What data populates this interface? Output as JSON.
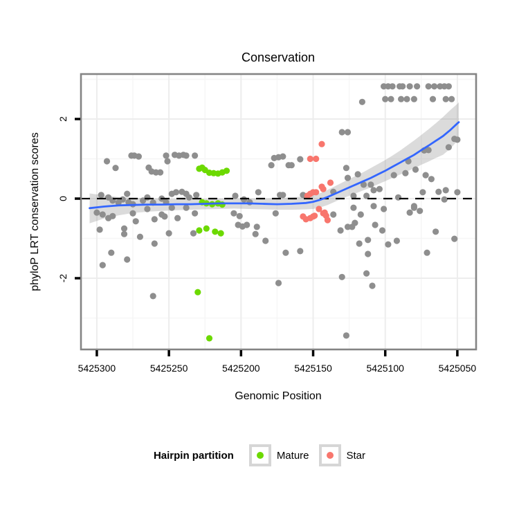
{
  "chart_data": {
    "type": "scatter",
    "title": "Conservation",
    "xlabel": "Genomic Position",
    "ylabel": "phyloP LRT conservation scores",
    "x_reversed": true,
    "xlim": [
      5425311,
      5425037
    ],
    "ylim": [
      -3.79,
      3.13
    ],
    "x_ticks": [
      5425300,
      5425250,
      5425200,
      5425150,
      5425100,
      5425050
    ],
    "x_minor_ticks": [
      5425275,
      5425225,
      5425175,
      5425125,
      5425075
    ],
    "y_ticks": [
      2,
      0,
      -2
    ],
    "y_minor_ticks": [
      3,
      1,
      -1,
      -3
    ],
    "reference_line_y": 0,
    "grid": true,
    "colors": {
      "other_points": "#8e8e8e",
      "mature_points": "#6cd900",
      "star_points": "#f8766d",
      "smooth_line": "#3366ff",
      "confidence_band": "rgba(125,125,125,0.28)",
      "panel_border": "#848484",
      "reference_line": "#000000",
      "grid_major": "#ededed",
      "grid_minor": "#f6f6f6"
    },
    "legend": {
      "title": "Hairpin partition",
      "position": "bottom",
      "entries": [
        {
          "label": "Mature",
          "color": "#6cd900"
        },
        {
          "label": "Star",
          "color": "#f8766d"
        }
      ]
    },
    "series": [
      {
        "name": "other",
        "color": "#8e8e8e",
        "points": [
          [
            5425101,
            2.82
          ],
          [
            5425098,
            2.82
          ],
          [
            5425095,
            2.82
          ],
          [
            5425090,
            2.82
          ],
          [
            5425088,
            2.82
          ],
          [
            5425083,
            2.82
          ],
          [
            5425078,
            2.82
          ],
          [
            5425070,
            2.82
          ],
          [
            5425066,
            2.82
          ],
          [
            5425062,
            2.82
          ],
          [
            5425059,
            2.82
          ],
          [
            5425056,
            2.82
          ],
          [
            5425100,
            2.5
          ],
          [
            5425096,
            2.5
          ],
          [
            5425089,
            2.5
          ],
          [
            5425085,
            2.5
          ],
          [
            5425080,
            2.5
          ],
          [
            5425067,
            2.5
          ],
          [
            5425058,
            2.5
          ],
          [
            5425054,
            2.5
          ],
          [
            5425116,
            2.43
          ],
          [
            5425130,
            1.67
          ],
          [
            5425126,
            1.67
          ],
          [
            5425293,
            0.94
          ],
          [
            5425287,
            0.77
          ],
          [
            5425276,
            1.08
          ],
          [
            5425274,
            1.08
          ],
          [
            5425271,
            1.06
          ],
          [
            5425264,
            0.78
          ],
          [
            5425262,
            0.68
          ],
          [
            5425259,
            0.66
          ],
          [
            5425256,
            0.66
          ],
          [
            5425252,
            1.08
          ],
          [
            5425251,
            0.94
          ],
          [
            5425246,
            1.1
          ],
          [
            5425243,
            1.08
          ],
          [
            5425240,
            1.1
          ],
          [
            5425238,
            1.08
          ],
          [
            5425232,
            1.08
          ],
          [
            5425179,
            0.84
          ],
          [
            5425177,
            1.02
          ],
          [
            5425174,
            1.04
          ],
          [
            5425171,
            1.06
          ],
          [
            5425167,
            0.84
          ],
          [
            5425165,
            0.84
          ],
          [
            5425159,
            0.99
          ],
          [
            5425127,
            0.77
          ],
          [
            5425126,
            0.52
          ],
          [
            5425119,
            0.61
          ],
          [
            5425115,
            0.35
          ],
          [
            5425110,
            0.35
          ],
          [
            5425094,
            0.59
          ],
          [
            5425086,
            0.64
          ],
          [
            5425084,
            0.94
          ],
          [
            5425079,
            0.73
          ],
          [
            5425073,
            1.21
          ],
          [
            5425070,
            1.22
          ],
          [
            5425072,
            0.59
          ],
          [
            5425068,
            0.49
          ],
          [
            5425056,
            1.29
          ],
          [
            5425052,
            1.5
          ],
          [
            5425050,
            1.48
          ],
          [
            5425297,
            0.09
          ],
          [
            5425292,
            0.03
          ],
          [
            5425289,
            -0.05
          ],
          [
            5425285,
            -0.1
          ],
          [
            5425282,
            -0.02
          ],
          [
            5425279,
            0.12
          ],
          [
            5425278,
            -0.09
          ],
          [
            5425275,
            -0.14
          ],
          [
            5425268,
            -0.05
          ],
          [
            5425265,
            0.03
          ],
          [
            5425261,
            -0.1
          ],
          [
            5425255,
            0
          ],
          [
            5425252,
            -0.09
          ],
          [
            5425248,
            0.12
          ],
          [
            5425245,
            0.16
          ],
          [
            5425241,
            0.17
          ],
          [
            5425238,
            0.12
          ],
          [
            5425236,
            0.03
          ],
          [
            5425231,
            0.09
          ],
          [
            5425204,
            0.07
          ],
          [
            5425198,
            -0.02
          ],
          [
            5425194,
            -0.09
          ],
          [
            5425188,
            0.16
          ],
          [
            5425173,
            0.09
          ],
          [
            5425171,
            0.09
          ],
          [
            5425157,
            0.09
          ],
          [
            5425136,
            0.17
          ],
          [
            5425122,
            0.07
          ],
          [
            5425113,
            0.07
          ],
          [
            5425108,
            0.21
          ],
          [
            5425104,
            0.24
          ],
          [
            5425091,
            0.03
          ],
          [
            5425080,
            -0.19
          ],
          [
            5425074,
            0.16
          ],
          [
            5425063,
            0.17
          ],
          [
            5425059,
            -0.02
          ],
          [
            5425058,
            0.21
          ],
          [
            5425050,
            0.16
          ],
          [
            5425300,
            -0.35
          ],
          [
            5425296,
            -0.4
          ],
          [
            5425292,
            -0.49
          ],
          [
            5425289,
            -0.44
          ],
          [
            5425275,
            -0.37
          ],
          [
            5425265,
            -0.26
          ],
          [
            5425260,
            -0.52
          ],
          [
            5425255,
            -0.4
          ],
          [
            5425253,
            -0.45
          ],
          [
            5425248,
            -0.23
          ],
          [
            5425244,
            -0.49
          ],
          [
            5425238,
            -0.23
          ],
          [
            5425232,
            -0.37
          ],
          [
            5425205,
            -0.37
          ],
          [
            5425201,
            -0.44
          ],
          [
            5425176,
            -0.37
          ],
          [
            5425136,
            -0.4
          ],
          [
            5425122,
            -0.23
          ],
          [
            5425121,
            -0.61
          ],
          [
            5425117,
            -0.4
          ],
          [
            5425108,
            -0.19
          ],
          [
            5425101,
            -0.26
          ],
          [
            5425083,
            -0.35
          ],
          [
            5425080,
            -0.23
          ],
          [
            5425076,
            -0.31
          ],
          [
            5425298,
            -0.78
          ],
          [
            5425281,
            -0.75
          ],
          [
            5425281,
            -0.89
          ],
          [
            5425273,
            -0.57
          ],
          [
            5425270,
            -0.96
          ],
          [
            5425260,
            -1.13
          ],
          [
            5425250,
            -0.87
          ],
          [
            5425233,
            -0.87
          ],
          [
            5425202,
            -0.66
          ],
          [
            5425199,
            -0.7
          ],
          [
            5425196,
            -0.66
          ],
          [
            5425190,
            -0.89
          ],
          [
            5425189,
            -0.71
          ],
          [
            5425183,
            -1.06
          ],
          [
            5425131,
            -0.8
          ],
          [
            5425126,
            -0.71
          ],
          [
            5425123,
            -0.71
          ],
          [
            5425118,
            -1.13
          ],
          [
            5425112,
            -1.04
          ],
          [
            5425107,
            -0.66
          ],
          [
            5425102,
            -0.8
          ],
          [
            5425098,
            -1.15
          ],
          [
            5425092,
            -1.06
          ],
          [
            5425065,
            -0.83
          ],
          [
            5425052,
            -1.01
          ],
          [
            5425296,
            -1.67
          ],
          [
            5425290,
            -1.36
          ],
          [
            5425279,
            -1.53
          ],
          [
            5425169,
            -1.36
          ],
          [
            5425159,
            -1.32
          ],
          [
            5425113,
            -1.88
          ],
          [
            5425112,
            -1.39
          ],
          [
            5425071,
            -1.36
          ],
          [
            5425261,
            -2.45
          ],
          [
            5425174,
            -2.12
          ],
          [
            5425130,
            -1.97
          ],
          [
            5425109,
            -2.19
          ],
          [
            5425127,
            -3.44
          ]
        ]
      },
      {
        "name": "Mature",
        "color": "#6cd900",
        "points": [
          [
            5425229,
            0.75
          ],
          [
            5425227,
            0.78
          ],
          [
            5425225,
            0.72
          ],
          [
            5425222,
            0.65
          ],
          [
            5425219,
            0.64
          ],
          [
            5425216,
            0.63
          ],
          [
            5425213,
            0.66
          ],
          [
            5425210,
            0.7
          ],
          [
            5425227,
            -0.09
          ],
          [
            5425224,
            -0.12
          ],
          [
            5425220,
            -0.14
          ],
          [
            5425216,
            -0.12
          ],
          [
            5425213,
            -0.15
          ],
          [
            5425229,
            -0.8
          ],
          [
            5425224,
            -0.75
          ],
          [
            5425218,
            -0.83
          ],
          [
            5425214,
            -0.87
          ],
          [
            5425230,
            -2.35
          ],
          [
            5425222,
            -3.51
          ]
        ]
      },
      {
        "name": "Star",
        "color": "#f8766d",
        "points": [
          [
            5425144,
            1.37
          ],
          [
            5425152,
            1.0
          ],
          [
            5425148,
            1.0
          ],
          [
            5425138,
            0.4
          ],
          [
            5425144,
            0.3
          ],
          [
            5425143,
            0.24
          ],
          [
            5425154,
            0.07
          ],
          [
            5425152,
            0.12
          ],
          [
            5425150,
            0.16
          ],
          [
            5425148,
            0.16
          ],
          [
            5425157,
            -0.45
          ],
          [
            5425155,
            -0.52
          ],
          [
            5425152,
            -0.49
          ],
          [
            5425150,
            -0.45
          ],
          [
            5425149,
            -0.43
          ],
          [
            5425146,
            -0.26
          ],
          [
            5425143,
            -0.37
          ],
          [
            5425142,
            -0.35
          ],
          [
            5425141,
            -0.43
          ],
          [
            5425140,
            -0.54
          ]
        ]
      }
    ],
    "smooth": {
      "name": "loess fit with confidence band",
      "points": [
        [
          5425305,
          -0.24,
          -0.62,
          0.13
        ],
        [
          5425295,
          -0.2,
          -0.5,
          0.08
        ],
        [
          5425285,
          -0.17,
          -0.42,
          0.04
        ],
        [
          5425275,
          -0.16,
          -0.36,
          0.02
        ],
        [
          5425265,
          -0.15,
          -0.33,
          0.01
        ],
        [
          5425255,
          -0.15,
          -0.31,
          0.0
        ],
        [
          5425245,
          -0.14,
          -0.29,
          -0.01
        ],
        [
          5425235,
          -0.14,
          -0.28,
          -0.01
        ],
        [
          5425225,
          -0.13,
          -0.27,
          -0.01
        ],
        [
          5425215,
          -0.12,
          -0.26,
          0.0
        ],
        [
          5425205,
          -0.12,
          -0.25,
          0.0
        ],
        [
          5425195,
          -0.12,
          -0.26,
          0.0
        ],
        [
          5425185,
          -0.13,
          -0.27,
          0.0
        ],
        [
          5425175,
          -0.14,
          -0.28,
          0.01
        ],
        [
          5425165,
          -0.13,
          -0.28,
          0.03
        ],
        [
          5425155,
          -0.11,
          -0.27,
          0.06
        ],
        [
          5425150,
          -0.08,
          -0.26,
          0.09
        ],
        [
          5425145,
          -0.03,
          -0.22,
          0.14
        ],
        [
          5425140,
          0.04,
          -0.16,
          0.22
        ],
        [
          5425135,
          0.12,
          -0.08,
          0.31
        ],
        [
          5425130,
          0.2,
          0.0,
          0.4
        ],
        [
          5425125,
          0.28,
          0.07,
          0.49
        ],
        [
          5425120,
          0.36,
          0.14,
          0.58
        ],
        [
          5425115,
          0.44,
          0.21,
          0.67
        ],
        [
          5425110,
          0.52,
          0.28,
          0.77
        ],
        [
          5425105,
          0.61,
          0.36,
          0.87
        ],
        [
          5425100,
          0.7,
          0.44,
          0.97
        ],
        [
          5425095,
          0.8,
          0.52,
          1.08
        ],
        [
          5425090,
          0.9,
          0.6,
          1.2
        ],
        [
          5425085,
          1.0,
          0.68,
          1.33
        ],
        [
          5425080,
          1.1,
          0.76,
          1.46
        ],
        [
          5425075,
          1.22,
          0.85,
          1.6
        ],
        [
          5425070,
          1.33,
          0.93,
          1.74
        ],
        [
          5425065,
          1.45,
          1.02,
          1.89
        ],
        [
          5425060,
          1.57,
          1.1,
          2.05
        ],
        [
          5425055,
          1.72,
          1.25,
          2.22
        ],
        [
          5425050,
          1.89,
          1.45,
          2.38
        ],
        [
          5425049,
          1.92,
          1.48,
          2.42
        ]
      ]
    }
  }
}
